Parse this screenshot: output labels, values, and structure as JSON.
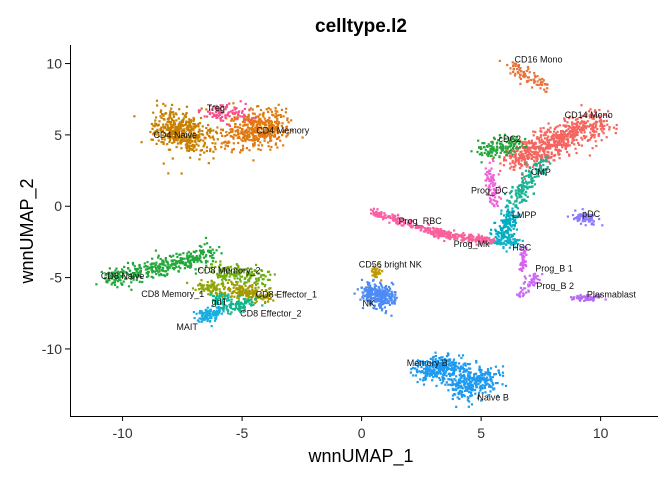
{
  "chart_data": {
    "type": "scatter",
    "title": "celltype.l2",
    "xlabel": "wnnUMAP_1",
    "ylabel": "wnnUMAP_2",
    "xlim": [
      -12.2,
      12.4
    ],
    "ylim": [
      -14.7,
      11.3
    ],
    "xticks": [
      -10,
      -5,
      0,
      5,
      10
    ],
    "yticks": [
      -10,
      -5,
      0,
      5,
      10
    ],
    "grid": false,
    "legend": "none",
    "clusters": [
      {
        "name": "CD4 Naive",
        "color": "#C98000",
        "label_xy": [
          -7.8,
          5.0
        ]
      },
      {
        "name": "CD4 Memory",
        "color": "#E07A10",
        "label_xy": [
          -3.3,
          5.3
        ]
      },
      {
        "name": "Treg",
        "color": "#F8508A",
        "label_xy": [
          -6.1,
          6.9
        ]
      },
      {
        "name": "CD8 Naive",
        "color": "#21A83A",
        "label_xy": [
          -10.0,
          -4.9
        ]
      },
      {
        "name": "CD8 Memory_2",
        "color": "#6FAE10",
        "label_xy": [
          -5.55,
          -4.5
        ]
      },
      {
        "name": "CD8 Memory_1",
        "color": "#8FA600",
        "label_xy": [
          -7.9,
          -6.15
        ]
      },
      {
        "name": "CD8 Effector_1",
        "color": "#A39A00",
        "label_xy": [
          -3.15,
          -6.2
        ]
      },
      {
        "name": "CD8 Effector_2",
        "color": "#14B58A",
        "label_xy": [
          -3.8,
          -7.5
        ]
      },
      {
        "name": "gdT",
        "color": "#00BE9A",
        "label_xy": [
          -5.95,
          -6.7
        ]
      },
      {
        "name": "MAIT",
        "color": "#1AAEE0",
        "label_xy": [
          -7.3,
          -8.45
        ]
      },
      {
        "name": "CD56 bright NK",
        "color": "#BF9A00",
        "label_xy": [
          1.2,
          -4.1
        ]
      },
      {
        "name": "NK",
        "color": "#4C8BF5",
        "label_xy": [
          0.3,
          -6.8
        ]
      },
      {
        "name": "Memory B",
        "color": "#1E9BF0",
        "label_xy": [
          2.75,
          -11.0
        ]
      },
      {
        "name": "Naive B",
        "color": "#1E9BF0",
        "label_xy": [
          5.5,
          -13.4
        ]
      },
      {
        "name": "CD16 Mono",
        "color": "#E8743B",
        "label_xy": [
          7.4,
          10.3
        ]
      },
      {
        "name": "CD14 Mono",
        "color": "#F5655E",
        "label_xy": [
          9.5,
          6.4
        ]
      },
      {
        "name": "cDC2",
        "color": "#24A63C",
        "label_xy": [
          6.2,
          4.7
        ]
      },
      {
        "name": "CMP",
        "color": "#19B394",
        "label_xy": [
          7.5,
          2.4
        ]
      },
      {
        "name": "Prog_DC",
        "color": "#F062D8",
        "label_xy": [
          5.35,
          1.1
        ]
      },
      {
        "name": "LMPP",
        "color": "#00ADC0",
        "label_xy": [
          6.8,
          -0.6
        ]
      },
      {
        "name": "HSC",
        "color": "#14B0C8",
        "label_xy": [
          6.7,
          -2.9
        ]
      },
      {
        "name": "Prog_RBC",
        "color": "#FB5FA4",
        "label_xy": [
          2.45,
          -1.05
        ]
      },
      {
        "name": "Prog_Mk",
        "color": "#F8609A",
        "label_xy": [
          4.6,
          -2.65
        ]
      },
      {
        "name": "pDC",
        "color": "#8C7BFF",
        "label_xy": [
          9.6,
          -0.55
        ]
      },
      {
        "name": "Prog_B 1",
        "color": "#D663F0",
        "label_xy": [
          8.05,
          -4.35
        ]
      },
      {
        "name": "Prog_B 2",
        "color": "#C86AF5",
        "label_xy": [
          8.1,
          -5.6
        ]
      },
      {
        "name": "Plasmablast",
        "color": "#B86CF5",
        "label_xy": [
          10.45,
          -6.2
        ]
      }
    ]
  }
}
